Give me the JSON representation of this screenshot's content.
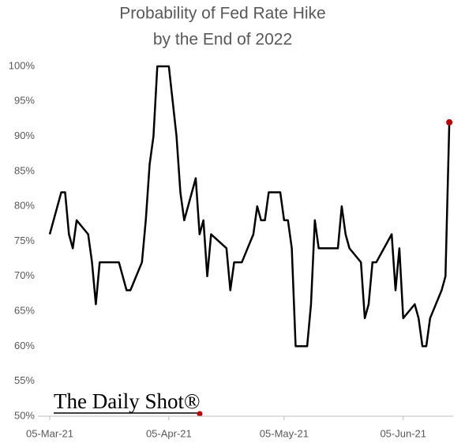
{
  "chart_data": {
    "type": "line",
    "title": [
      "Probability of Fed Rate Hike",
      "by the End of 2022"
    ],
    "logo": "The Daily Shot®",
    "x": [
      "2021-03-05",
      "2021-03-08",
      "2021-03-09",
      "2021-03-10",
      "2021-03-11",
      "2021-03-12",
      "2021-03-15",
      "2021-03-16",
      "2021-03-17",
      "2021-03-18",
      "2021-03-23",
      "2021-03-25",
      "2021-03-26",
      "2021-03-29",
      "2021-03-30",
      "2021-03-31",
      "2021-04-01",
      "2021-04-02",
      "2021-04-05",
      "2021-04-07",
      "2021-04-08",
      "2021-04-09",
      "2021-04-10",
      "2021-04-12",
      "2021-04-13",
      "2021-04-14",
      "2021-04-15",
      "2021-04-16",
      "2021-04-20",
      "2021-04-21",
      "2021-04-22",
      "2021-04-24",
      "2021-04-27",
      "2021-04-28",
      "2021-04-29",
      "2021-04-30",
      "2021-05-01",
      "2021-05-04",
      "2021-05-05",
      "2021-05-06",
      "2021-05-07",
      "2021-05-08",
      "2021-05-11",
      "2021-05-12",
      "2021-05-13",
      "2021-05-14",
      "2021-05-19",
      "2021-05-20",
      "2021-05-21",
      "2021-05-22",
      "2021-05-25",
      "2021-05-26",
      "2021-05-27",
      "2021-05-28",
      "2021-05-29",
      "2021-06-02",
      "2021-06-03",
      "2021-06-04",
      "2021-06-05",
      "2021-06-08",
      "2021-06-09",
      "2021-06-10",
      "2021-06-11",
      "2021-06-12",
      "2021-06-15",
      "2021-06-16",
      "2021-06-17"
    ],
    "series": [
      {
        "color": "#000000",
        "marker_color": "#c00000",
        "values": [
          76,
          82,
          82,
          76,
          74,
          78,
          76,
          72,
          66,
          72,
          72,
          68,
          68,
          72,
          78,
          86,
          90,
          100,
          100,
          90,
          82,
          78,
          80,
          84,
          76,
          78,
          70,
          76,
          74,
          68,
          72,
          72,
          76,
          80,
          78,
          78,
          82,
          82,
          78,
          78,
          74,
          60,
          60,
          66,
          78,
          74,
          74,
          80,
          76,
          74,
          72,
          64,
          66,
          72,
          72,
          76,
          68,
          74,
          64,
          66,
          64,
          60,
          60,
          64,
          68,
          70,
          92
        ]
      }
    ],
    "xlim": [
      "2021-03-05",
      "2021-06-18"
    ],
    "xticks": [
      {
        "value": "2021-03-05",
        "label": "05-Mar-21"
      },
      {
        "value": "2021-04-05",
        "label": "05-Apr-21"
      },
      {
        "value": "2021-05-05",
        "label": "05-May-21"
      },
      {
        "value": "2021-06-05",
        "label": "05-Jun-21"
      }
    ],
    "ylim": [
      50,
      100
    ],
    "yticks": [
      {
        "value": 50,
        "label": "50%"
      },
      {
        "value": 55,
        "label": "55%"
      },
      {
        "value": 60,
        "label": "60%"
      },
      {
        "value": 65,
        "label": "65%"
      },
      {
        "value": 70,
        "label": "70%"
      },
      {
        "value": 75,
        "label": "75%"
      },
      {
        "value": 80,
        "label": "80%"
      },
      {
        "value": 85,
        "label": "85%"
      },
      {
        "value": 90,
        "label": "90%"
      },
      {
        "value": 95,
        "label": "95%"
      },
      {
        "value": 100,
        "label": "100%"
      }
    ],
    "grid": false
  }
}
